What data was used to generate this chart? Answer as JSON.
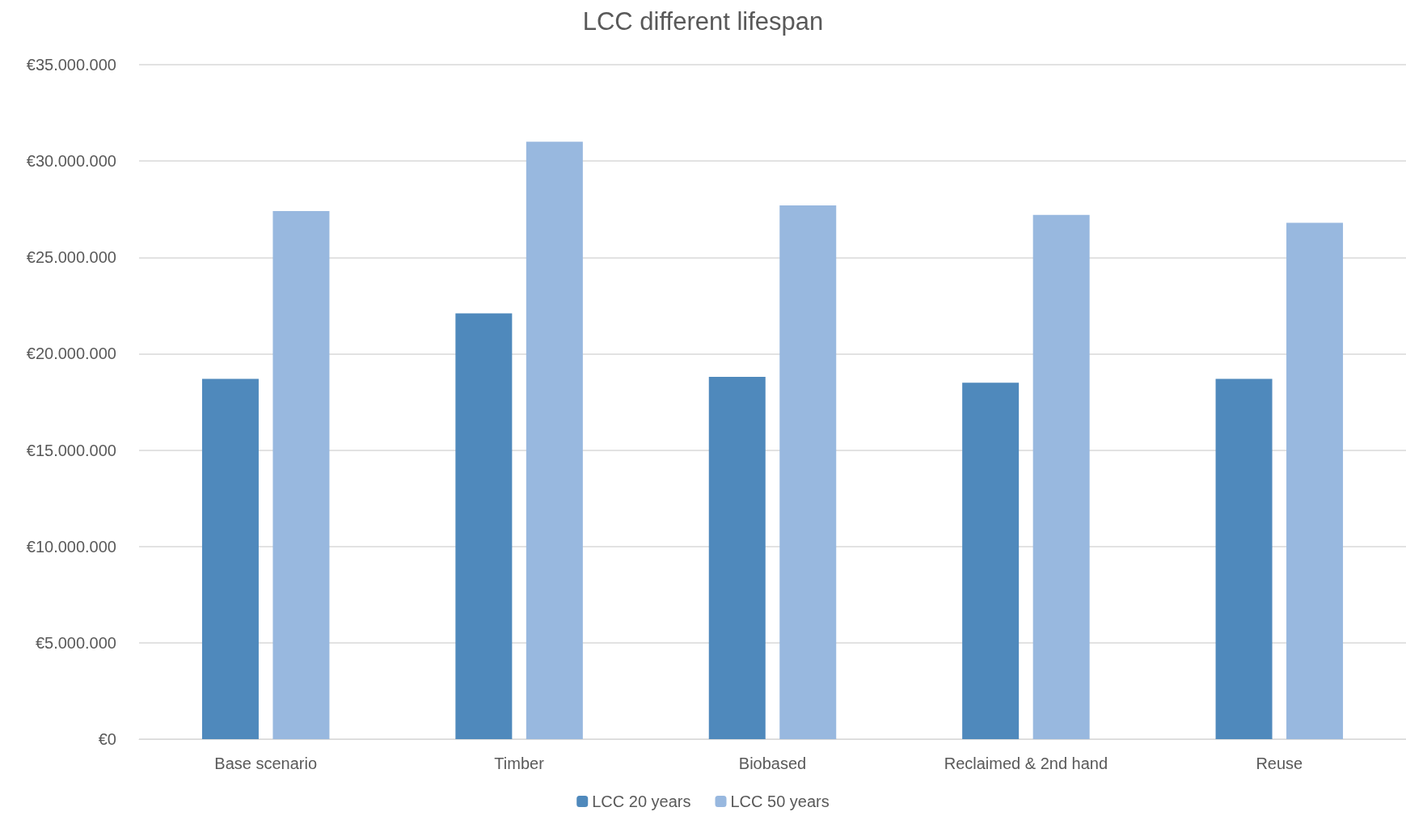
{
  "chart_data": {
    "type": "bar",
    "title": "LCC different lifespan",
    "categories": [
      "Base scenario",
      "Timber",
      "Biobased",
      "Reclaimed & 2nd hand",
      "Reuse"
    ],
    "series": [
      {
        "name": "LCC 20 years",
        "color": "#4f89bc",
        "values": [
          18700000,
          22100000,
          18800000,
          18500000,
          18700000
        ]
      },
      {
        "name": "LCC 50 years",
        "color": "#98b8df",
        "values": [
          27400000,
          31000000,
          27700000,
          27200000,
          26800000
        ]
      }
    ],
    "ylim": [
      0,
      35000000
    ],
    "yticks": [
      {
        "value": 0,
        "label": "€0"
      },
      {
        "value": 5000000,
        "label": "€5.000.000"
      },
      {
        "value": 10000000,
        "label": "€10.000.000"
      },
      {
        "value": 15000000,
        "label": "€15.000.000"
      },
      {
        "value": 20000000,
        "label": "€20.000.000"
      },
      {
        "value": 25000000,
        "label": "€25.000.000"
      },
      {
        "value": 30000000,
        "label": "€30.000.000"
      },
      {
        "value": 35000000,
        "label": "€35.000.000"
      }
    ],
    "grid": "y",
    "legend": "bottom"
  }
}
